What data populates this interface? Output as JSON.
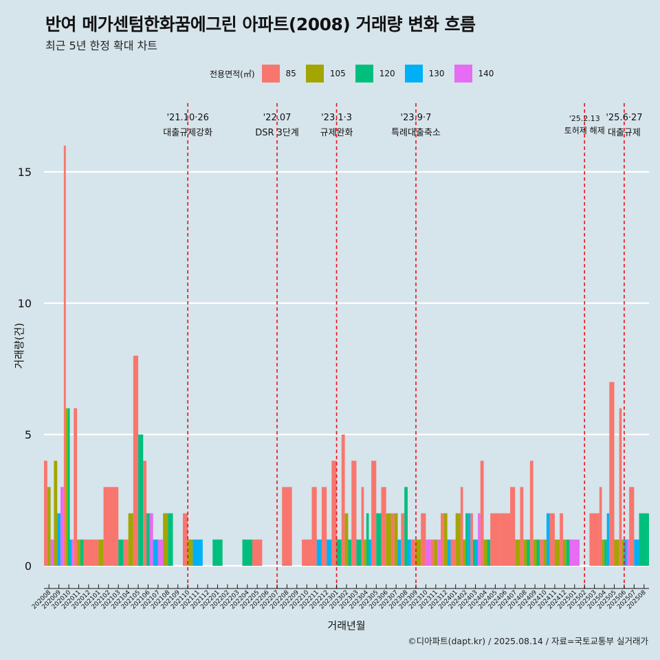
{
  "title": "반여 메가센텀한화꿈에그린 아파트(2008) 거래량 변화 흐름",
  "subtitle": "최근 5년 한정 확대 차트",
  "caption": "©디아파트(dapt.kr) / 2025.08.14 / 자료=국토교통부 실거래가",
  "legend": {
    "title": "전용면적(㎡)",
    "items": [
      {
        "label": "85",
        "color": "#f8766d"
      },
      {
        "label": "105",
        "color": "#a3a500"
      },
      {
        "label": "120",
        "color": "#00bf7d"
      },
      {
        "label": "130",
        "color": "#00b0f6"
      },
      {
        "label": "140",
        "color": "#e76bf3"
      }
    ]
  },
  "chart_data": {
    "type": "bar",
    "xlabel": "거래년월",
    "ylabel": "거래량(건)",
    "ylim": [
      0,
      16
    ],
    "yticks": [
      0,
      5,
      10,
      15
    ],
    "grid": true,
    "legend_position": "top",
    "months": [
      "202008",
      "202009",
      "202010",
      "202011",
      "202012",
      "202101",
      "202102",
      "202103",
      "202104",
      "202105",
      "202106",
      "202107",
      "202108",
      "202109",
      "202110",
      "202111",
      "202112",
      "202201",
      "202202",
      "202203",
      "202204",
      "202205",
      "202206",
      "202207",
      "202208",
      "202209",
      "202210",
      "202211",
      "202212",
      "202301",
      "202302",
      "202303",
      "202304",
      "202305",
      "202306",
      "202307",
      "202308",
      "202309",
      "202310",
      "202311",
      "202312",
      "202401",
      "202402",
      "202403",
      "202404",
      "202405",
      "202406",
      "202407",
      "202408",
      "202409",
      "202410",
      "202411",
      "202412",
      "202501",
      "202502",
      "202503",
      "202504",
      "202505",
      "202506",
      "202507",
      "202508"
    ],
    "series": [
      {
        "name": "85",
        "values": [
          4,
          0,
          16,
          6,
          1,
          1,
          3,
          3,
          1,
          8,
          4,
          0,
          0,
          0,
          2,
          0,
          0,
          0,
          0,
          0,
          0,
          1,
          0,
          0,
          3,
          0,
          1,
          3,
          3,
          4,
          5,
          4,
          3,
          4,
          3,
          2,
          2,
          1,
          2,
          1,
          2,
          1,
          3,
          2,
          4,
          2,
          2,
          3,
          3,
          4,
          1,
          2,
          2,
          0,
          0,
          2,
          3,
          7,
          6,
          3,
          0
        ]
      },
      {
        "name": "105",
        "values": [
          3,
          4,
          6,
          1,
          0,
          1,
          0,
          0,
          2,
          0,
          0,
          0,
          2,
          0,
          1,
          0,
          0,
          0,
          0,
          0,
          0,
          0,
          0,
          0,
          0,
          0,
          0,
          0,
          0,
          0,
          2,
          0,
          1,
          0,
          2,
          2,
          0,
          1,
          0,
          1,
          2,
          2,
          1,
          0,
          1,
          0,
          0,
          1,
          1,
          1,
          1,
          1,
          1,
          0,
          0,
          0,
          1,
          1,
          1,
          0,
          0
        ]
      },
      {
        "name": "120",
        "values": [
          0,
          0,
          6,
          1,
          0,
          0,
          0,
          1,
          0,
          5,
          2,
          0,
          2,
          0,
          0,
          0,
          0,
          1,
          0,
          0,
          1,
          0,
          0,
          0,
          0,
          0,
          0,
          0,
          0,
          1,
          1,
          1,
          2,
          2,
          0,
          0,
          3,
          0,
          0,
          0,
          0,
          0,
          2,
          1,
          1,
          0,
          0,
          0,
          1,
          1,
          0,
          0,
          1,
          0,
          0,
          0,
          1,
          0,
          0,
          0,
          2
        ]
      },
      {
        "name": "130",
        "values": [
          0,
          2,
          1,
          0,
          0,
          0,
          0,
          0,
          0,
          0,
          0,
          1,
          0,
          0,
          0,
          1,
          0,
          0,
          0,
          0,
          0,
          0,
          0,
          0,
          0,
          0,
          0,
          1,
          1,
          0,
          0,
          0,
          1,
          0,
          0,
          1,
          1,
          0,
          0,
          0,
          1,
          0,
          2,
          1,
          0,
          0,
          0,
          0,
          0,
          0,
          2,
          0,
          0,
          0,
          0,
          0,
          2,
          0,
          1,
          1,
          0
        ]
      },
      {
        "name": "140",
        "values": [
          1,
          3,
          1,
          0,
          0,
          0,
          0,
          0,
          0,
          0,
          2,
          1,
          0,
          0,
          0,
          0,
          0,
          0,
          0,
          0,
          0,
          0,
          0,
          0,
          0,
          0,
          0,
          0,
          0,
          0,
          0,
          0,
          0,
          0,
          0,
          0,
          0,
          0,
          1,
          1,
          0,
          0,
          0,
          2,
          0,
          0,
          0,
          0,
          0,
          0,
          0,
          0,
          0,
          1,
          0,
          0,
          0,
          0,
          1,
          0,
          0
        ]
      }
    ],
    "annotations": [
      {
        "month": "202110",
        "date": "'21.10·26",
        "label": "대출규제강화"
      },
      {
        "month": "202207",
        "date": "'22.07",
        "label": "DSR 3단계"
      },
      {
        "month": "202301",
        "date": "'23.1·3",
        "label": "규제완화"
      },
      {
        "month": "202309",
        "date": "'23.9·7",
        "label": "특례대출축소"
      },
      {
        "month": "202502",
        "date": "'25.2.13",
        "label": "토허제 해제"
      },
      {
        "month": "202506",
        "date": "'25.6·27",
        "label": "대출규제"
      }
    ]
  }
}
